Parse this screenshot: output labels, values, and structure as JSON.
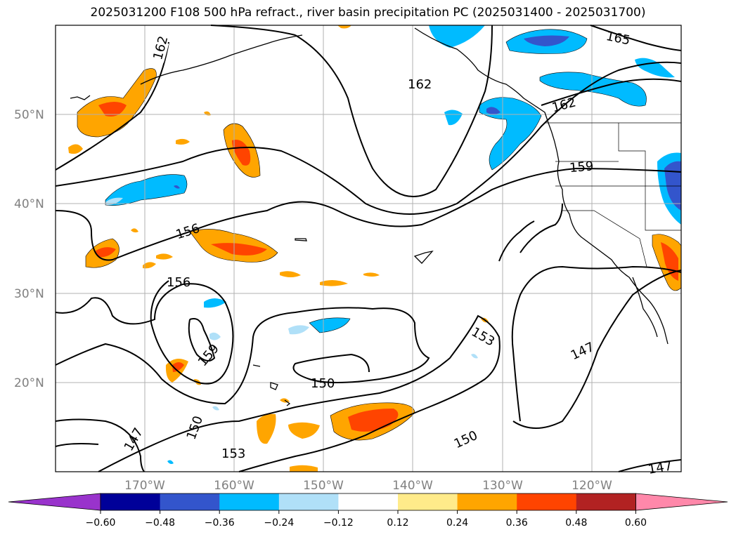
{
  "title": "2025031200 F108 500 hPa refract., river basin precipitation PC (2025031400 - 2025031700)",
  "map": {
    "lat_labels": [
      "50°N",
      "40°N",
      "30°N",
      "20°N"
    ],
    "lon_labels": [
      "170°W",
      "160°W",
      "150°W",
      "140°W",
      "130°W",
      "120°W"
    ],
    "contour_labels": [
      "162",
      "165",
      "162",
      "162",
      "159",
      "156",
      "156",
      "159",
      "153",
      "147",
      "150",
      "150",
      "147",
      "153",
      "150",
      "147"
    ],
    "grid": true
  },
  "colorbar": {
    "ticks": [
      "−0.60",
      "−0.48",
      "−0.36",
      "−0.24",
      "−0.12",
      "0.12",
      "0.24",
      "0.36",
      "0.48",
      "0.60"
    ],
    "colors": [
      "#9933cc",
      "#000099",
      "#3355cc",
      "#00bbff",
      "#b0e0f8",
      "#ffffff",
      "#ffeb8a",
      "#ffa500",
      "#ff4400",
      "#b22222",
      "#ff88aa"
    ]
  }
}
